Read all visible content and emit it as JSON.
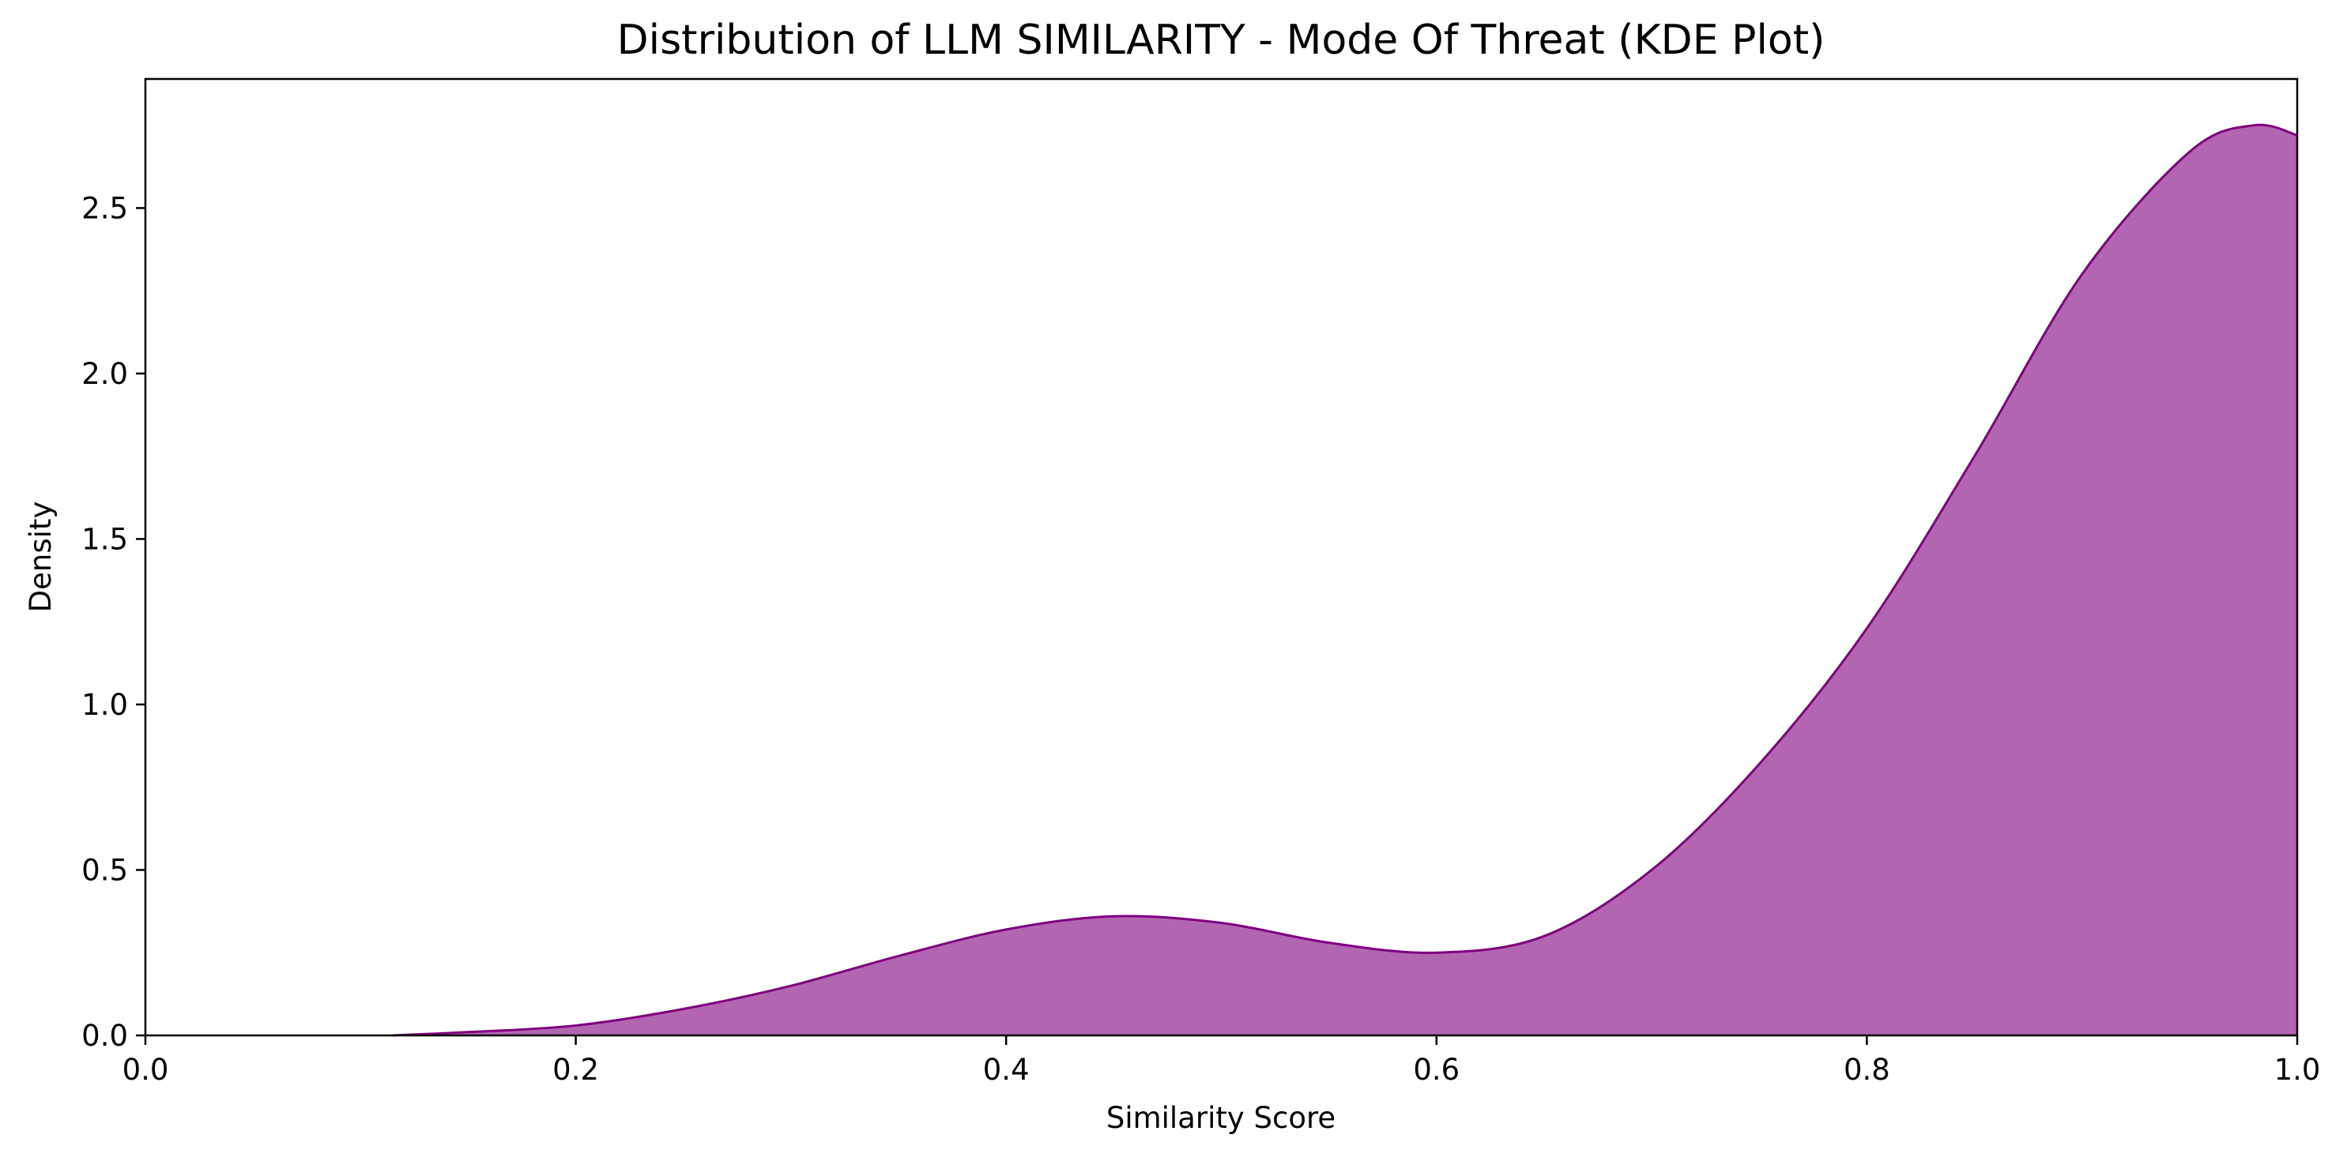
{
  "chart_data": {
    "type": "area",
    "title": "Distribution of LLM SIMILARITY - Mode Of Threat (KDE Plot)",
    "xlabel": "Similarity Score",
    "ylabel": "Density",
    "xlim": [
      0.0,
      1.0
    ],
    "ylim": [
      0.0,
      2.89
    ],
    "xticks": [
      "0.0",
      "0.2",
      "0.4",
      "0.6",
      "0.8",
      "1.0"
    ],
    "yticks": [
      "0.0",
      "0.5",
      "1.0",
      "1.5",
      "2.0",
      "2.5"
    ],
    "grid": false,
    "colors": {
      "fill": "#b266b2",
      "line": "#800080"
    },
    "x": [
      0.115,
      0.15,
      0.2,
      0.25,
      0.3,
      0.35,
      0.4,
      0.45,
      0.5,
      0.55,
      0.6,
      0.65,
      0.7,
      0.75,
      0.8,
      0.85,
      0.9,
      0.95,
      0.98,
      1.0
    ],
    "y": [
      0.0,
      0.01,
      0.03,
      0.08,
      0.15,
      0.24,
      0.32,
      0.36,
      0.34,
      0.28,
      0.25,
      0.3,
      0.5,
      0.82,
      1.23,
      1.75,
      2.3,
      2.67,
      2.75,
      2.72
    ]
  }
}
